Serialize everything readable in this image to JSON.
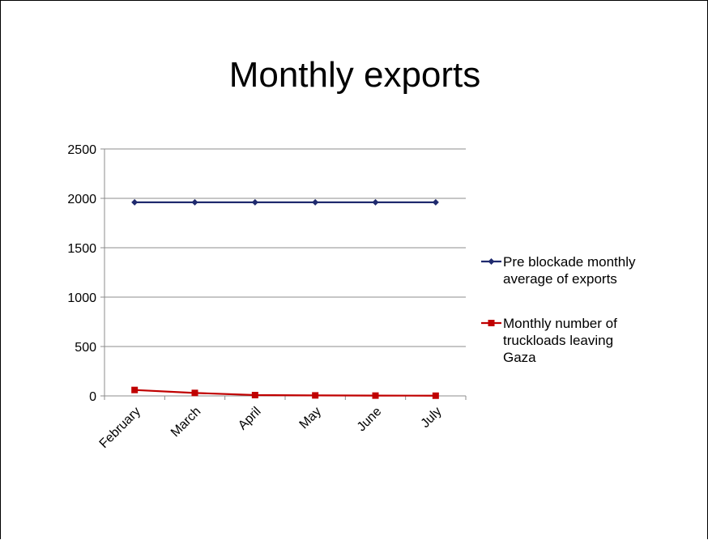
{
  "slide": {
    "title": "Monthly exports"
  },
  "chart_data": {
    "type": "line",
    "title": "",
    "xlabel": "",
    "ylabel": "",
    "categories": [
      "February",
      "March",
      "April",
      "May",
      "June",
      "July"
    ],
    "ylim": [
      0,
      2500
    ],
    "yticks": [
      "0",
      "500",
      "1000",
      "1500",
      "2000",
      "2500"
    ],
    "grid": true,
    "legend_position": "right",
    "series": [
      {
        "name": "Pre blockade monthly average of exports",
        "legend_lines": [
          "Pre blockade monthly",
          "average of exports"
        ],
        "values": [
          1960,
          1960,
          1960,
          1960,
          1960,
          1960
        ],
        "color": "#1f2a6e",
        "marker": "diamond"
      },
      {
        "name": "Monthly number of truckloads leaving Gaza",
        "legend_lines": [
          "Monthly number of",
          "truckloads leaving",
          "Gaza"
        ],
        "values": [
          60,
          30,
          8,
          5,
          3,
          2
        ],
        "color": "#c00000",
        "marker": "square"
      }
    ]
  }
}
